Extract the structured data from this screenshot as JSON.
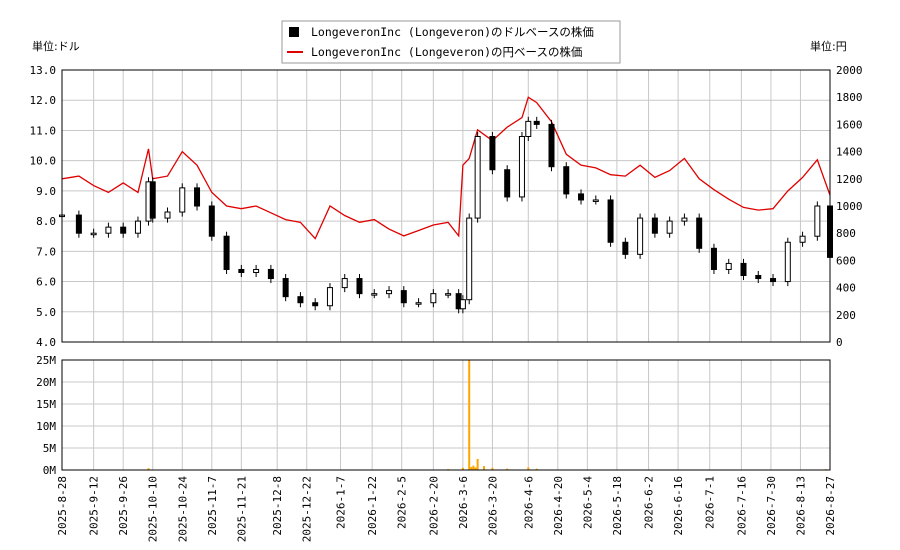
{
  "legend": {
    "usd_label": "LongeveronInc (Longeveron)のドルベースの株価",
    "jpy_label": "LongeveronInc (Longeveron)の円ベースの株価"
  },
  "units": {
    "left": "単位:ドル",
    "right": "単位:円"
  },
  "colors": {
    "usd": "#000000",
    "jpy": "#e00000",
    "volume": "#ffa500",
    "grid": "#c8c8c8"
  },
  "chart_data": [
    {
      "type": "line",
      "title": "",
      "ylabel_left": "単位:ドル",
      "ylabel_right": "単位:円",
      "ylim_left": [
        4.0,
        13.0
      ],
      "yticks_left": [
        "4.0",
        "5.0",
        "6.0",
        "7.0",
        "8.0",
        "9.0",
        "10.0",
        "11.0",
        "12.0",
        "13.0"
      ],
      "ylim_right": [
        0,
        2000
      ],
      "yticks_right": [
        "0",
        "200",
        "400",
        "600",
        "800",
        "1000",
        "1200",
        "1400",
        "1600",
        "1800",
        "2000"
      ],
      "xlim": [
        "2025-08-28",
        "2026-08-27"
      ],
      "grid": true,
      "legend_position": "top-center",
      "series": [
        {
          "name": "LongeveronInc (Longeveron)のドルベースの株価",
          "style": "candlestick",
          "x": [
            "2025-08-28",
            "2025-09-05",
            "2025-09-12",
            "2025-09-19",
            "2025-09-26",
            "2025-10-03",
            "2025-10-08",
            "2025-10-10",
            "2025-10-17",
            "2025-10-24",
            "2025-10-31",
            "2025-11-07",
            "2025-11-14",
            "2025-11-21",
            "2025-11-28",
            "2025-12-05",
            "2025-12-12",
            "2025-12-19",
            "2025-12-26",
            "2026-01-02",
            "2026-01-09",
            "2026-01-16",
            "2026-01-23",
            "2026-01-30",
            "2026-02-06",
            "2026-02-13",
            "2026-02-20",
            "2026-02-27",
            "2026-03-04",
            "2026-03-06",
            "2026-03-09",
            "2026-03-13",
            "2026-03-20",
            "2026-03-27",
            "2026-04-03",
            "2026-04-06",
            "2026-04-10",
            "2026-04-17",
            "2026-04-24",
            "2026-05-01",
            "2026-05-08",
            "2026-05-15",
            "2026-05-22",
            "2026-05-29",
            "2026-06-05",
            "2026-06-12",
            "2026-06-19",
            "2026-06-26",
            "2026-07-03",
            "2026-07-10",
            "2026-07-17",
            "2026-07-24",
            "2026-07-31",
            "2026-08-07",
            "2026-08-14",
            "2026-08-21",
            "2026-08-27"
          ],
          "values": [
            8.2,
            7.6,
            7.6,
            7.8,
            7.6,
            8.0,
            9.3,
            8.1,
            8.3,
            9.1,
            8.5,
            7.5,
            6.4,
            6.3,
            6.4,
            6.1,
            5.5,
            5.3,
            5.2,
            5.8,
            6.1,
            5.6,
            5.6,
            5.7,
            5.3,
            5.3,
            5.6,
            5.6,
            5.1,
            5.4,
            8.1,
            10.8,
            9.7,
            8.8,
            10.8,
            11.3,
            11.2,
            9.8,
            8.9,
            8.7,
            8.7,
            7.3,
            6.9,
            8.1,
            7.6,
            8.0,
            8.1,
            7.1,
            6.4,
            6.6,
            6.2,
            6.1,
            6.0,
            7.3,
            7.5,
            8.5,
            6.8
          ]
        },
        {
          "name": "LongeveronInc (Longeveron)の円ベースの株価",
          "style": "line",
          "axis": "right",
          "x": [
            "2025-08-28",
            "2025-09-05",
            "2025-09-12",
            "2025-09-19",
            "2025-09-26",
            "2025-10-03",
            "2025-10-08",
            "2025-10-10",
            "2025-10-17",
            "2025-10-24",
            "2025-10-31",
            "2025-11-07",
            "2025-11-14",
            "2025-11-21",
            "2025-11-28",
            "2025-12-05",
            "2025-12-12",
            "2025-12-19",
            "2025-12-26",
            "2026-01-02",
            "2026-01-09",
            "2026-01-16",
            "2026-01-23",
            "2026-01-30",
            "2026-02-06",
            "2026-02-13",
            "2026-02-20",
            "2026-02-27",
            "2026-03-04",
            "2026-03-06",
            "2026-03-09",
            "2026-03-13",
            "2026-03-20",
            "2026-03-27",
            "2026-04-03",
            "2026-04-06",
            "2026-04-10",
            "2026-04-17",
            "2026-04-24",
            "2026-05-01",
            "2026-05-08",
            "2026-05-15",
            "2026-05-22",
            "2026-05-29",
            "2026-06-05",
            "2026-06-12",
            "2026-06-19",
            "2026-06-26",
            "2026-07-03",
            "2026-07-10",
            "2026-07-17",
            "2026-07-24",
            "2026-07-31",
            "2026-08-07",
            "2026-08-14",
            "2026-08-21",
            "2026-08-27"
          ],
          "values": [
            1200,
            1220,
            1150,
            1100,
            1170,
            1100,
            1420,
            1200,
            1220,
            1400,
            1300,
            1100,
            1000,
            980,
            1000,
            950,
            900,
            880,
            760,
            1000,
            930,
            880,
            900,
            830,
            780,
            820,
            860,
            880,
            780,
            1300,
            1350,
            1560,
            1480,
            1580,
            1650,
            1800,
            1760,
            1620,
            1380,
            1300,
            1280,
            1230,
            1220,
            1300,
            1210,
            1260,
            1350,
            1200,
            1120,
            1050,
            990,
            970,
            980,
            1110,
            1210,
            1340,
            1080
          ]
        }
      ]
    },
    {
      "type": "bar",
      "title": "",
      "ylim": [
        0,
        25000000
      ],
      "yticks": [
        "0M",
        "5M",
        "10M",
        "15M",
        "20M",
        "25M"
      ],
      "xtick_labels": [
        "2025-8-28",
        "2025-9-12",
        "2025-9-26",
        "2025-10-10",
        "2025-10-24",
        "2025-11-7",
        "2025-11-21",
        "2025-12-8",
        "2025-12-22",
        "2026-1-7",
        "2026-1-22",
        "2026-2-5",
        "2026-2-20",
        "2026-3-6",
        "2026-3-20",
        "2026-4-6",
        "2026-4-20",
        "2026-5-4",
        "2026-5-18",
        "2026-6-2",
        "2026-6-16",
        "2026-7-1",
        "2026-7-16",
        "2026-7-30",
        "2026-8-13",
        "2026-8-27"
      ],
      "series": [
        {
          "name": "",
          "x": [
            "2025-10-08",
            "2026-02-27",
            "2026-03-06",
            "2026-03-09",
            "2026-03-10",
            "2026-03-11",
            "2026-03-12",
            "2026-03-13",
            "2026-03-16",
            "2026-03-20",
            "2026-03-27",
            "2026-04-06",
            "2026-04-10",
            "2026-08-25"
          ],
          "values": [
            400000,
            200000,
            500000,
            25000000,
            700000,
            1000000,
            600000,
            2500000,
            900000,
            500000,
            300000,
            600000,
            300000,
            200000
          ]
        }
      ]
    }
  ]
}
